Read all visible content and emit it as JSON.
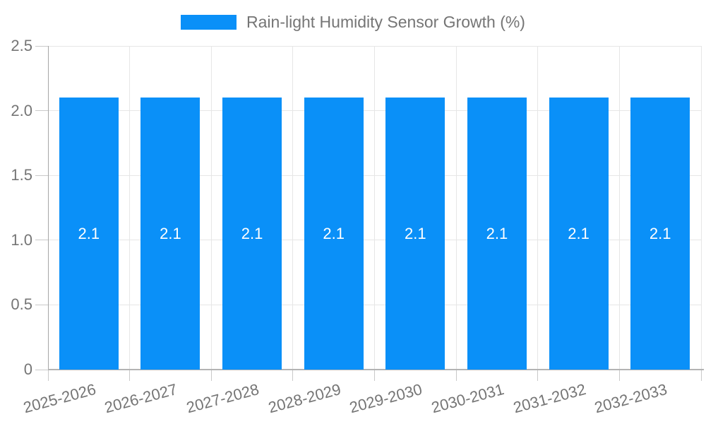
{
  "chart_data": {
    "type": "bar",
    "title": "Rain-light Humidity Sensor Growth (%)",
    "categories": [
      "2025-2026",
      "2026-2027",
      "2027-2028",
      "2028-2029",
      "2029-2030",
      "2030-2031",
      "2031-2032",
      "2032-2033"
    ],
    "values": [
      2.1,
      2.1,
      2.1,
      2.1,
      2.1,
      2.1,
      2.1,
      2.1
    ],
    "bar_labels": [
      "2.1",
      "2.1",
      "2.1",
      "2.1",
      "2.1",
      "2.1",
      "2.1",
      "2.1"
    ],
    "ylim": [
      0,
      2.5
    ],
    "ytick_values": [
      0,
      0.5,
      1.0,
      1.5,
      2.0,
      2.5
    ],
    "ytick_labels": [
      "0",
      "0.5",
      "1.0",
      "1.5",
      "2.0",
      "2.5"
    ],
    "xlabel": "",
    "ylabel": "",
    "grid": true,
    "legend_position": "top-center",
    "colors": {
      "bar": "#0a90f8",
      "text": "#757575",
      "bar_label": "#ffffff",
      "grid": "#e6e6e6",
      "axis": "#a6a6a6",
      "background": "#ffffff"
    }
  }
}
